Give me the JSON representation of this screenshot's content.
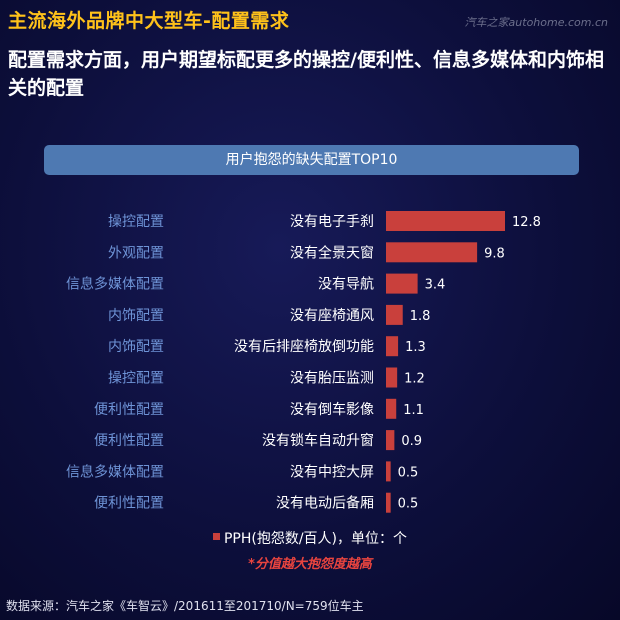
{
  "header": {
    "title": "主流海外品牌中大型车-配置需求",
    "watermark": "汽车之家autohome.com.cn",
    "headline": "配置需求方面，用户期望标配更多的操控/便利性、信息多媒体和内饰相关的配置"
  },
  "chart_data": {
    "type": "bar",
    "orientation": "horizontal",
    "title": "用户抱怨的缺失配置TOP10",
    "categories": [
      "没有电子手刹",
      "没有全景天窗",
      "没有导航",
      "没有座椅通风",
      "没有后排座椅放倒功能",
      "没有胎压监测",
      "没有倒车影像",
      "没有锁车自动升窗",
      "没有中控大屏",
      "没有电动后备厢"
    ],
    "groups": [
      "操控配置",
      "外观配置",
      "信息多媒体配置",
      "内饰配置",
      "内饰配置",
      "操控配置",
      "便利性配置",
      "便利性配置",
      "信息多媒体配置",
      "便利性配置"
    ],
    "value_labels": [
      "12.8",
      "9.8",
      "3.4",
      "1.8",
      "1.3",
      "1.2",
      "1.1",
      "0.9",
      "0.5",
      "0.5"
    ],
    "series": [
      {
        "name": "PPH(抱怨数/百人)，单位：个",
        "values": [
          12.8,
          9.8,
          3.4,
          1.8,
          1.3,
          1.2,
          1.1,
          0.9,
          0.5,
          0.5
        ]
      }
    ],
    "xlim": [
      0,
      12.8
    ],
    "bar_color": "#c9403c",
    "grid": false,
    "legend": "bottom-center",
    "note": "*分值越大抱怨度越高"
  },
  "footer": {
    "source": "数据来源：汽车之家《车智云》/201611至201710/N=759位车主"
  },
  "colors": {
    "title": "#ffc21a",
    "group_label": "#6e93d6",
    "banner": "#4e79b2",
    "note": "#e8443f"
  }
}
